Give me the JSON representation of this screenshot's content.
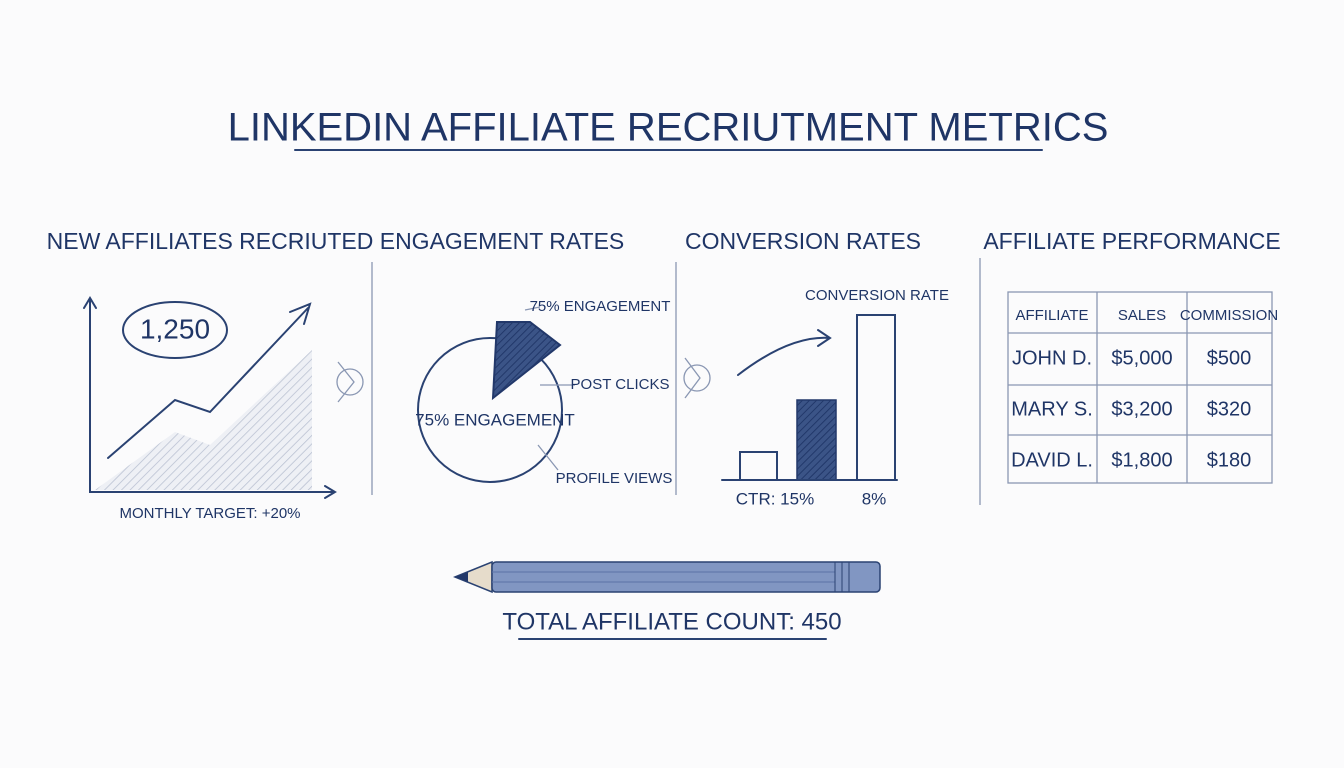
{
  "title": "LINKEDIN AFFILIATE RECRIUTMENT METRICS",
  "panels": [
    {
      "title": "NEW AFFILIATES RECRIUTED",
      "value": "1,250",
      "note": "MONTHLY TARGET: +20%"
    },
    {
      "title": "ENGAGEMENT RATES",
      "top_label": "75% ENGAGEMENT",
      "post_clicks": "POST CLICKS",
      "center_label": "75% ENGAGEMENT",
      "profile_views": "PROFILE VIEWS"
    },
    {
      "title": "CONVERSION RATES",
      "bar_label": "CONVERSION RATE",
      "ctr": "CTR: 15%",
      "rate": "8%"
    },
    {
      "title": "AFFILIATE PERFORMANCE",
      "table": {
        "header": [
          "AFFILIATE",
          "SALES",
          "COMMISSION"
        ],
        "rows": [
          [
            "JOHN D.",
            "$5,000",
            "$500"
          ],
          [
            "MARY S.",
            "$3,200",
            "$320"
          ],
          [
            "DAVID L.",
            "$1,800",
            "$180"
          ]
        ]
      }
    }
  ],
  "footer": "TOTAL AFFILIATE COUNT: 450"
}
